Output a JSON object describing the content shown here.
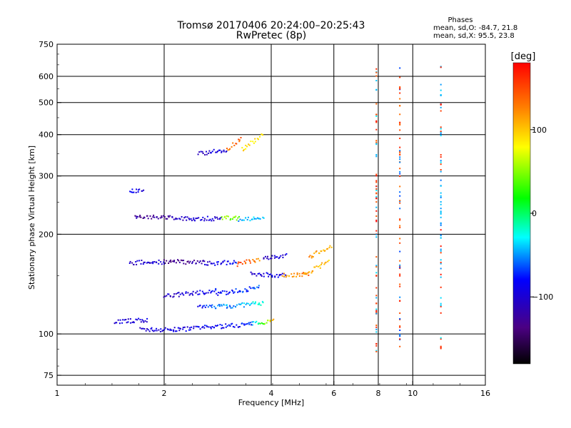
{
  "chart_data": {
    "type": "scatter",
    "title": "Tromsø 20170406 20:24:00–20:25:43",
    "subtitle": "RwPretec (8p)",
    "xlabel": "Frequency [MHz]",
    "ylabel": "Stationary phase Virtual Height [km]",
    "x_scale": "log2",
    "y_scale": "log",
    "xlim": [
      1,
      16
    ],
    "ylim": [
      70,
      750
    ],
    "x_ticks": [
      1,
      2,
      4,
      6,
      8,
      10,
      16
    ],
    "x_tick_labels": [
      "1",
      "2",
      "4",
      "6",
      "8",
      "10",
      "16"
    ],
    "y_ticks": [
      75,
      100,
      200,
      300,
      400,
      500,
      600,
      750
    ],
    "y_tick_labels": [
      "75",
      "100",
      "200",
      "300",
      "400",
      "500",
      "600",
      "750"
    ],
    "grid": true,
    "phase_box": {
      "heading": "Phases",
      "line_o": "mean, sd,O: -84.7, 21.8",
      "line_x": "mean, sd,X:  95.5, 23.8"
    },
    "colorbar": {
      "label": "[deg]",
      "range": [
        -180,
        180
      ],
      "ticks": [
        100,
        0,
        -100
      ],
      "tick_labels": [
        "100",
        "0",
        "−100"
      ]
    },
    "traces": [
      {
        "f": [
          1.72,
          2.15
        ],
        "h": [
          103,
          103
        ],
        "phase_start": -105,
        "phase_end": -95
      },
      {
        "f": [
          2.15,
          3.5
        ],
        "h": [
          103,
          107
        ],
        "phase_start": -95,
        "phase_end": -80
      },
      {
        "f": [
          3.5,
          4.05
        ],
        "h": [
          107,
          110
        ],
        "phase_start": -75,
        "phase_end": 110
      },
      {
        "f": [
          1.45,
          1.8
        ],
        "h": [
          109,
          110
        ],
        "phase_start": -100,
        "phase_end": -95
      },
      {
        "f": [
          2.5,
          3.0
        ],
        "h": [
          120,
          122
        ],
        "phase_start": -90,
        "phase_end": -40
      },
      {
        "f": [
          3.0,
          3.8
        ],
        "h": [
          121,
          124
        ],
        "phase_start": -60,
        "phase_end": -20
      },
      {
        "f": [
          2.0,
          2.8
        ],
        "h": [
          130,
          135
        ],
        "phase_start": -110,
        "phase_end": -85
      },
      {
        "f": [
          2.8,
          3.7
        ],
        "h": [
          132,
          138
        ],
        "phase_start": -90,
        "phase_end": -60
      },
      {
        "f": [
          3.5,
          4.4
        ],
        "h": [
          152,
          150
        ],
        "phase_start": -100,
        "phase_end": -85
      },
      {
        "f": [
          4.3,
          5.1
        ],
        "h": [
          150,
          152
        ],
        "phase_start": 110,
        "phase_end": 140
      },
      {
        "f": [
          4.9,
          5.8
        ],
        "h": [
          150,
          165
        ],
        "phase_start": 120,
        "phase_end": 100
      },
      {
        "f": [
          1.6,
          2.0
        ],
        "h": [
          164,
          165
        ],
        "phase_start": -110,
        "phase_end": -100
      },
      {
        "f": [
          2.0,
          2.6
        ],
        "h": [
          165,
          165
        ],
        "phase_start": -140,
        "phase_end": -120
      },
      {
        "f": [
          2.6,
          3.2
        ],
        "h": [
          163,
          165
        ],
        "phase_start": -105,
        "phase_end": -80
      },
      {
        "f": [
          3.2,
          3.7
        ],
        "h": [
          162,
          168
        ],
        "phase_start": 150,
        "phase_end": 130
      },
      {
        "f": [
          3.8,
          4.4
        ],
        "h": [
          170,
          172
        ],
        "phase_start": -110,
        "phase_end": -95
      },
      {
        "f": [
          5.1,
          5.9
        ],
        "h": [
          170,
          185
        ],
        "phase_start": 130,
        "phase_end": 100
      },
      {
        "f": [
          1.65,
          2.1
        ],
        "h": [
          225,
          225
        ],
        "phase_start": -130,
        "phase_end": -130
      },
      {
        "f": [
          2.1,
          2.9
        ],
        "h": [
          223,
          223
        ],
        "phase_start": -110,
        "phase_end": -100
      },
      {
        "f": [
          2.9,
          3.25
        ],
        "h": [
          224,
          224
        ],
        "phase_start": 50,
        "phase_end": 40
      },
      {
        "f": [
          3.25,
          3.8
        ],
        "h": [
          222,
          222
        ],
        "phase_start": -50,
        "phase_end": -40
      },
      {
        "f": [
          1.6,
          1.75
        ],
        "h": [
          270,
          270
        ],
        "phase_start": -90,
        "phase_end": -90
      },
      {
        "f": [
          2.5,
          3.0
        ],
        "h": [
          350,
          360
        ],
        "phase_start": -110,
        "phase_end": -90
      },
      {
        "f": [
          3.0,
          3.3
        ],
        "h": [
          360,
          390
        ],
        "phase_start": 130,
        "phase_end": 150
      },
      {
        "f": [
          3.3,
          3.8
        ],
        "h": [
          360,
          400
        ],
        "phase_start": 100,
        "phase_end": 80
      }
    ],
    "vertical_traces": [
      {
        "f": 7.9,
        "h": [
          85,
          650
        ],
        "phases": [
          150,
          -40,
          170
        ]
      },
      {
        "f": 9.2,
        "h": [
          90,
          640
        ],
        "phases": [
          160,
          140,
          -60
        ]
      },
      {
        "f": 12.0,
        "h": [
          90,
          650
        ],
        "phases": [
          -50,
          -40,
          165
        ]
      }
    ]
  }
}
